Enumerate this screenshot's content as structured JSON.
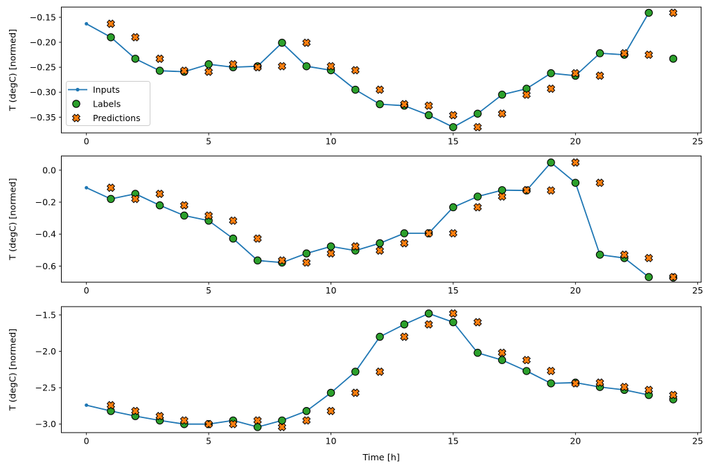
{
  "figure": {
    "background": "#ffffff",
    "xlabel": "Time [h]",
    "ylabel": "T (degC) [normed]",
    "legend": {
      "items": [
        {
          "label": "Inputs",
          "marker": "line-dot",
          "color": "#1f77b4"
        },
        {
          "label": "Labels",
          "marker": "circle",
          "color": "#2ca02c"
        },
        {
          "label": "Predictions",
          "marker": "X",
          "color": "#ff7f0e"
        }
      ],
      "edge_color": "#cccccc",
      "fill_color": "#ffffff"
    }
  },
  "chart_data": [
    {
      "type": "line",
      "title": "",
      "xlabel": "",
      "ylabel": "T (degC) [normed]",
      "xlim": [
        -1.03,
        25.15
      ],
      "ylim": [
        -0.3815,
        -0.1295
      ],
      "grid": false,
      "legend_visible": true,
      "xticks": [
        {
          "v": 0,
          "label": "0"
        },
        {
          "v": 5,
          "label": "5"
        },
        {
          "v": 10,
          "label": "10"
        },
        {
          "v": 15,
          "label": "15"
        },
        {
          "v": 20,
          "label": "20"
        },
        {
          "v": 25,
          "label": "25"
        }
      ],
      "yticks": [
        {
          "v": -0.15,
          "label": "−0.15"
        },
        {
          "v": -0.2,
          "label": "−0.20"
        },
        {
          "v": -0.25,
          "label": "−0.25"
        },
        {
          "v": -0.3,
          "label": "−0.30"
        },
        {
          "v": -0.35,
          "label": "−0.35"
        }
      ],
      "series": [
        {
          "name": "Inputs",
          "type": "line",
          "marker": "dot",
          "color": "#1f77b4",
          "x": [
            0,
            1,
            2,
            3,
            4,
            5,
            6,
            7,
            8,
            9,
            10,
            11,
            12,
            13,
            14,
            15,
            16,
            17,
            18,
            19,
            20,
            21,
            22,
            23
          ],
          "y": [
            -0.163,
            -0.19,
            -0.233,
            -0.257,
            -0.259,
            -0.244,
            -0.25,
            -0.248,
            -0.201,
            -0.248,
            -0.256,
            -0.295,
            -0.324,
            -0.327,
            -0.346,
            -0.37,
            -0.343,
            -0.305,
            -0.293,
            -0.262,
            -0.267,
            -0.222,
            -0.225,
            -0.141
          ]
        },
        {
          "name": "Labels",
          "type": "scatter",
          "marker": "circle",
          "color": "#2ca02c",
          "edgecolor": "#000000",
          "x": [
            1,
            2,
            3,
            4,
            5,
            6,
            7,
            8,
            9,
            10,
            11,
            12,
            13,
            14,
            15,
            16,
            17,
            18,
            19,
            20,
            21,
            22,
            23,
            24
          ],
          "y": [
            -0.19,
            -0.233,
            -0.257,
            -0.259,
            -0.244,
            -0.25,
            -0.248,
            -0.201,
            -0.248,
            -0.256,
            -0.295,
            -0.324,
            -0.327,
            -0.346,
            -0.37,
            -0.343,
            -0.305,
            -0.293,
            -0.262,
            -0.267,
            -0.222,
            -0.225,
            -0.141,
            -0.233
          ]
        },
        {
          "name": "Predictions",
          "type": "scatter",
          "marker": "X",
          "color": "#ff7f0e",
          "edgecolor": "#000000",
          "x": [
            1,
            2,
            3,
            4,
            5,
            6,
            7,
            8,
            9,
            10,
            11,
            12,
            13,
            14,
            15,
            16,
            17,
            18,
            19,
            20,
            21,
            22,
            23,
            24
          ],
          "y": [
            -0.163,
            -0.19,
            -0.233,
            -0.257,
            -0.259,
            -0.244,
            -0.25,
            -0.248,
            -0.201,
            -0.248,
            -0.256,
            -0.295,
            -0.324,
            -0.327,
            -0.346,
            -0.37,
            -0.343,
            -0.305,
            -0.293,
            -0.262,
            -0.267,
            -0.222,
            -0.225,
            -0.141
          ]
        }
      ]
    },
    {
      "type": "line",
      "title": "",
      "xlabel": "",
      "ylabel": "T (degC) [normed]",
      "xlim": [
        -1.03,
        25.15
      ],
      "ylim": [
        -0.701,
        0.089
      ],
      "grid": false,
      "legend_visible": false,
      "xticks": [
        {
          "v": 0,
          "label": "0"
        },
        {
          "v": 5,
          "label": "5"
        },
        {
          "v": 10,
          "label": "10"
        },
        {
          "v": 15,
          "label": "15"
        },
        {
          "v": 20,
          "label": "20"
        },
        {
          "v": 25,
          "label": "25"
        }
      ],
      "yticks": [
        {
          "v": 0.0,
          "label": "0.0"
        },
        {
          "v": -0.2,
          "label": "−0.2"
        },
        {
          "v": -0.4,
          "label": "−0.4"
        },
        {
          "v": -0.6,
          "label": "−0.6"
        }
      ],
      "series": [
        {
          "name": "Inputs",
          "type": "line",
          "marker": "dot",
          "color": "#1f77b4",
          "x": [
            0,
            1,
            2,
            3,
            4,
            5,
            6,
            7,
            8,
            9,
            10,
            11,
            12,
            13,
            14,
            15,
            16,
            17,
            18,
            19,
            20,
            21,
            22,
            23
          ],
          "y": [
            -0.11,
            -0.18,
            -0.148,
            -0.22,
            -0.284,
            -0.316,
            -0.428,
            -0.565,
            -0.578,
            -0.521,
            -0.477,
            -0.503,
            -0.457,
            -0.395,
            -0.395,
            -0.232,
            -0.165,
            -0.125,
            -0.127,
            0.048,
            -0.079,
            -0.529,
            -0.55,
            -0.669
          ]
        },
        {
          "name": "Labels",
          "type": "scatter",
          "marker": "circle",
          "color": "#2ca02c",
          "edgecolor": "#000000",
          "x": [
            1,
            2,
            3,
            4,
            5,
            6,
            7,
            8,
            9,
            10,
            11,
            12,
            13,
            14,
            15,
            16,
            17,
            18,
            19,
            20,
            21,
            22,
            23,
            24
          ],
          "y": [
            -0.18,
            -0.148,
            -0.22,
            -0.284,
            -0.316,
            -0.428,
            -0.565,
            -0.578,
            -0.521,
            -0.477,
            -0.503,
            -0.457,
            -0.395,
            -0.395,
            -0.232,
            -0.165,
            -0.125,
            -0.127,
            0.048,
            -0.079,
            -0.529,
            -0.55,
            -0.669,
            -0.672
          ]
        },
        {
          "name": "Predictions",
          "type": "scatter",
          "marker": "X",
          "color": "#ff7f0e",
          "edgecolor": "#000000",
          "x": [
            1,
            2,
            3,
            4,
            5,
            6,
            7,
            8,
            9,
            10,
            11,
            12,
            13,
            14,
            15,
            16,
            17,
            18,
            19,
            20,
            21,
            22,
            23,
            24
          ],
          "y": [
            -0.11,
            -0.18,
            -0.148,
            -0.22,
            -0.284,
            -0.316,
            -0.428,
            -0.565,
            -0.578,
            -0.521,
            -0.477,
            -0.503,
            -0.457,
            -0.395,
            -0.395,
            -0.232,
            -0.165,
            -0.125,
            -0.127,
            0.048,
            -0.079,
            -0.529,
            -0.55,
            -0.669
          ]
        }
      ]
    },
    {
      "type": "line",
      "title": "",
      "xlabel": "Time [h]",
      "ylabel": "T (degC) [normed]",
      "xlim": [
        -1.03,
        25.15
      ],
      "ylim": [
        -3.117,
        -1.386
      ],
      "grid": false,
      "legend_visible": false,
      "xticks": [
        {
          "v": 0,
          "label": "0"
        },
        {
          "v": 5,
          "label": "5"
        },
        {
          "v": 10,
          "label": "10"
        },
        {
          "v": 15,
          "label": "15"
        },
        {
          "v": 20,
          "label": "20"
        },
        {
          "v": 25,
          "label": "25"
        }
      ],
      "yticks": [
        {
          "v": -1.5,
          "label": "−1.5"
        },
        {
          "v": -2.0,
          "label": "−2.0"
        },
        {
          "v": -2.5,
          "label": "−2.5"
        },
        {
          "v": -3.0,
          "label": "−3.0"
        }
      ],
      "series": [
        {
          "name": "Inputs",
          "type": "line",
          "marker": "dot",
          "color": "#1f77b4",
          "x": [
            0,
            1,
            2,
            3,
            4,
            5,
            6,
            7,
            8,
            9,
            10,
            11,
            12,
            13,
            14,
            15,
            16,
            17,
            18,
            19,
            20,
            21,
            22,
            23
          ],
          "y": [
            -2.74,
            -2.82,
            -2.89,
            -2.95,
            -3.0,
            -3.0,
            -2.95,
            -3.04,
            -2.95,
            -2.82,
            -2.57,
            -2.28,
            -1.8,
            -1.63,
            -1.48,
            -1.6,
            -2.02,
            -2.12,
            -2.27,
            -2.44,
            -2.43,
            -2.49,
            -2.53,
            -2.6
          ]
        },
        {
          "name": "Labels",
          "type": "scatter",
          "marker": "circle",
          "color": "#2ca02c",
          "edgecolor": "#000000",
          "x": [
            1,
            2,
            3,
            4,
            5,
            6,
            7,
            8,
            9,
            10,
            11,
            12,
            13,
            14,
            15,
            16,
            17,
            18,
            19,
            20,
            21,
            22,
            23,
            24
          ],
          "y": [
            -2.82,
            -2.89,
            -2.95,
            -3.0,
            -3.0,
            -2.95,
            -3.04,
            -2.95,
            -2.82,
            -2.57,
            -2.28,
            -1.8,
            -1.63,
            -1.48,
            -1.6,
            -2.02,
            -2.12,
            -2.27,
            -2.44,
            -2.43,
            -2.49,
            -2.53,
            -2.6,
            -2.66
          ]
        },
        {
          "name": "Predictions",
          "type": "scatter",
          "marker": "X",
          "color": "#ff7f0e",
          "edgecolor": "#000000",
          "x": [
            1,
            2,
            3,
            4,
            5,
            6,
            7,
            8,
            9,
            10,
            11,
            12,
            13,
            14,
            15,
            16,
            17,
            18,
            19,
            20,
            21,
            22,
            23,
            24
          ],
          "y": [
            -2.74,
            -2.82,
            -2.89,
            -2.95,
            -3.0,
            -3.0,
            -2.95,
            -3.04,
            -2.95,
            -2.82,
            -2.57,
            -2.28,
            -1.8,
            -1.63,
            -1.48,
            -1.6,
            -2.02,
            -2.12,
            -2.27,
            -2.44,
            -2.43,
            -2.49,
            -2.53,
            -2.6
          ]
        }
      ]
    }
  ]
}
